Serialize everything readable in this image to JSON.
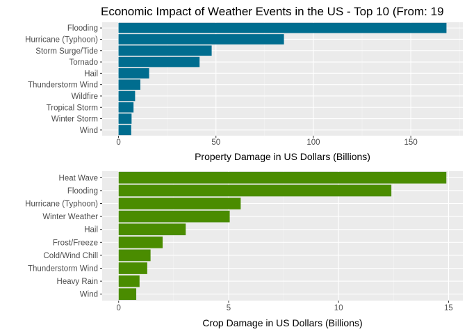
{
  "title": "Economic Impact of Weather Events in the US - Top 10 (From: 19",
  "chart_data": [
    {
      "type": "bar",
      "orientation": "horizontal",
      "categories": [
        "Flooding",
        "Hurricane (Typhoon)",
        "Storm Surge/Tide",
        "Tornado",
        "Hail",
        "Thunderstorm Wind",
        "Wildfire",
        "Tropical Storm",
        "Winter Storm",
        "Wind"
      ],
      "values": [
        168.3,
        84.9,
        47.8,
        41.6,
        15.7,
        11.2,
        8.5,
        7.7,
        6.7,
        6.5
      ],
      "xlabel": "Property Damage in US Dollars (Billions)",
      "xlim": [
        -8.4,
        176.7
      ],
      "ticks": [
        0,
        50,
        100,
        150
      ],
      "tick_labels": [
        "0",
        "50",
        "100",
        "150"
      ],
      "grid": true,
      "color": "#006D8F"
    },
    {
      "type": "bar",
      "orientation": "horizontal",
      "categories": [
        "Heat Wave",
        "Flooding",
        "Hurricane (Typhoon)",
        "Winter Weather",
        "Hail",
        "Frost/Freeze",
        "Cold/Wind Chill",
        "Thunderstorm Wind",
        "Heavy Rain",
        "Wind"
      ],
      "values": [
        14.9,
        12.4,
        5.55,
        5.05,
        3.05,
        2.0,
        1.45,
        1.3,
        0.95,
        0.8
      ],
      "xlabel": "Crop Damage in US Dollars (Billions)",
      "xlim": [
        -0.75,
        15.65
      ],
      "ticks": [
        0,
        5,
        10,
        15
      ],
      "tick_labels": [
        "0",
        "5",
        "10",
        "15"
      ],
      "grid": true,
      "color": "#4A8C00"
    }
  ]
}
